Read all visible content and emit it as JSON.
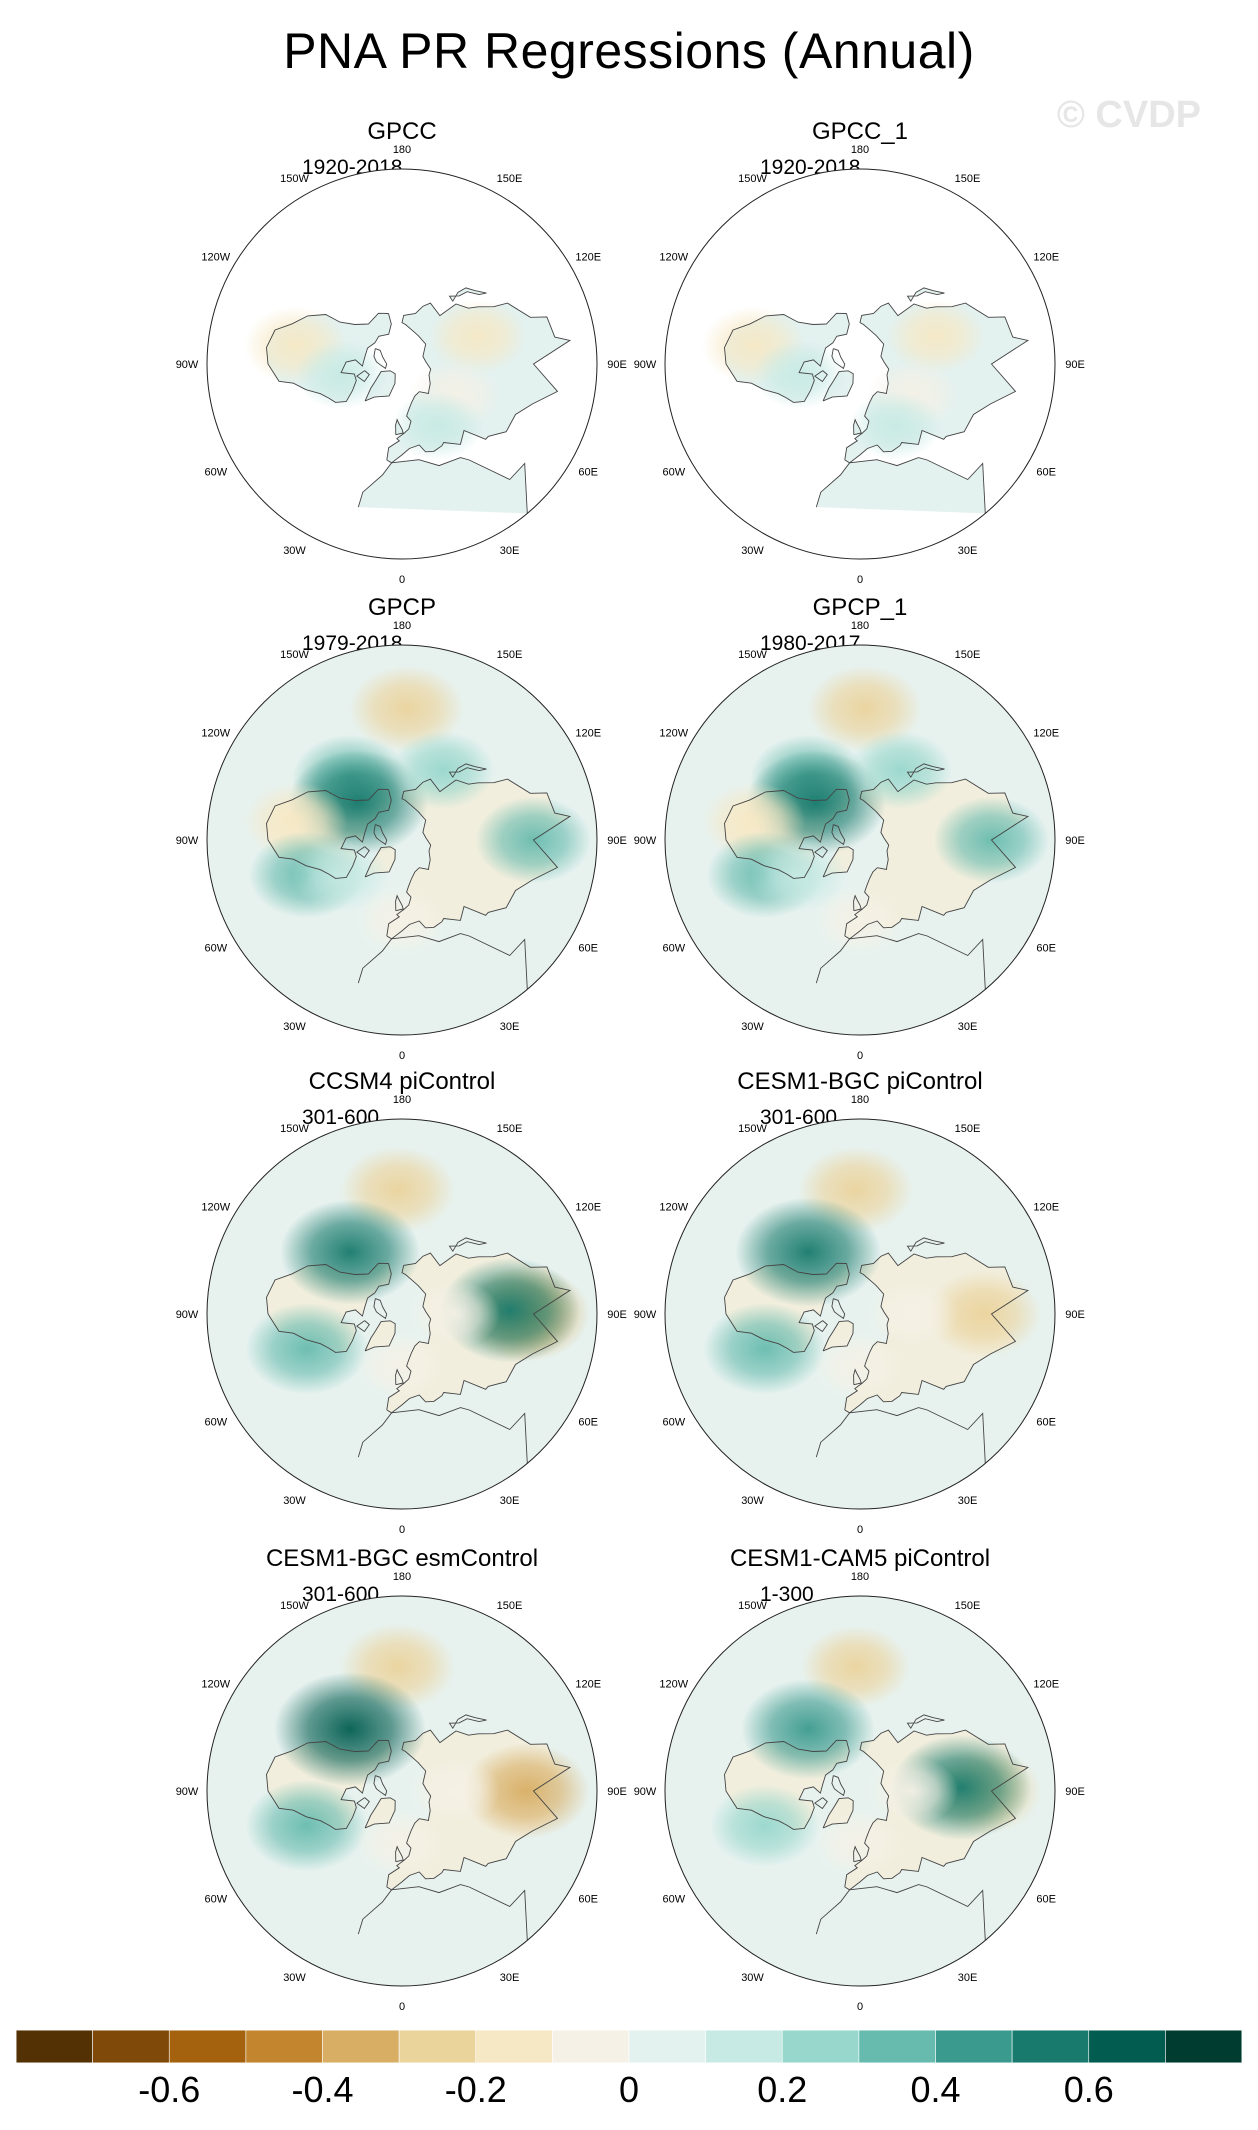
{
  "title": "PNA PR Regressions (Annual)",
  "watermark": "© CVDP",
  "chart_data": [
    {
      "type": "heatmap",
      "title": "GPCC",
      "subtitle": "1920-2018",
      "projection": "north-polar-stereographic",
      "lon_labels": [
        "180",
        "150E",
        "120E",
        "90E",
        "60E",
        "30E",
        "0",
        "30W",
        "60W",
        "90W",
        "120W",
        "150W"
      ],
      "ocean_missing": true,
      "anomalies": [
        {
          "lon": 110,
          "lat": 45,
          "value": -0.15
        },
        {
          "lon": -100,
          "lat": 32,
          "value": -0.2
        },
        {
          "lon": -80,
          "lat": 55,
          "value": 0.1
        },
        {
          "lon": 60,
          "lat": 55,
          "value": -0.1
        },
        {
          "lon": 30,
          "lat": 50,
          "value": 0.1
        }
      ]
    },
    {
      "type": "heatmap",
      "title": "GPCC_1",
      "subtitle": "1920-2018",
      "projection": "north-polar-stereographic",
      "lon_labels": [
        "180",
        "150E",
        "120E",
        "90E",
        "60E",
        "30E",
        "0",
        "30W",
        "60W",
        "90W",
        "120W",
        "150W"
      ],
      "ocean_missing": true,
      "anomalies": [
        {
          "lon": 110,
          "lat": 45,
          "value": -0.15
        },
        {
          "lon": -100,
          "lat": 32,
          "value": -0.2
        },
        {
          "lon": -80,
          "lat": 55,
          "value": 0.1
        },
        {
          "lon": 60,
          "lat": 55,
          "value": -0.1
        },
        {
          "lon": 30,
          "lat": 50,
          "value": 0.1
        }
      ]
    },
    {
      "type": "heatmap",
      "title": "GPCP",
      "subtitle": "1979-2018",
      "projection": "north-polar-stereographic",
      "lon_labels": [
        "180",
        "150E",
        "120E",
        "90E",
        "60E",
        "30E",
        "0",
        "30W",
        "60W",
        "90W",
        "120W",
        "150W"
      ],
      "ocean_missing": false,
      "anomalies": [
        {
          "lon": 178,
          "lat": 22,
          "value": -0.3
        },
        {
          "lon": -140,
          "lat": 45,
          "value": 0.3
        },
        {
          "lon": -130,
          "lat": 57,
          "value": 0.5
        },
        {
          "lon": 150,
          "lat": 45,
          "value": 0.2
        },
        {
          "lon": -100,
          "lat": 32,
          "value": -0.2
        },
        {
          "lon": -70,
          "lat": 35,
          "value": 0.3
        },
        {
          "lon": -60,
          "lat": 50,
          "value": 0.15
        },
        {
          "lon": 90,
          "lat": 22,
          "value": 0.3
        },
        {
          "lon": 0,
          "lat": 45,
          "value": -0.1
        }
      ]
    },
    {
      "type": "heatmap",
      "title": "GPCP_1",
      "subtitle": "1980-2017",
      "projection": "north-polar-stereographic",
      "lon_labels": [
        "180",
        "150E",
        "120E",
        "90E",
        "60E",
        "30E",
        "0",
        "30W",
        "60W",
        "90W",
        "120W",
        "150W"
      ],
      "ocean_missing": false,
      "anomalies": [
        {
          "lon": 178,
          "lat": 22,
          "value": -0.3
        },
        {
          "lon": -140,
          "lat": 45,
          "value": 0.3
        },
        {
          "lon": -130,
          "lat": 57,
          "value": 0.5
        },
        {
          "lon": 150,
          "lat": 45,
          "value": 0.2
        },
        {
          "lon": -100,
          "lat": 32,
          "value": -0.2
        },
        {
          "lon": -70,
          "lat": 35,
          "value": 0.3
        },
        {
          "lon": -60,
          "lat": 50,
          "value": 0.15
        },
        {
          "lon": 90,
          "lat": 22,
          "value": 0.3
        },
        {
          "lon": 0,
          "lat": 45,
          "value": -0.1
        }
      ]
    },
    {
      "type": "heatmap",
      "title": "CCSM4 piControl",
      "subtitle": "301-600",
      "projection": "north-polar-stereographic",
      "lon_labels": [
        "180",
        "150E",
        "120E",
        "90E",
        "60E",
        "30E",
        "0",
        "30W",
        "60W",
        "90W",
        "120W",
        "150W"
      ],
      "ocean_missing": false,
      "anomalies": [
        {
          "lon": -178,
          "lat": 25,
          "value": -0.3
        },
        {
          "lon": -140,
          "lat": 45,
          "value": 0.5
        },
        {
          "lon": -70,
          "lat": 35,
          "value": 0.35
        },
        {
          "lon": 90,
          "lat": 25,
          "value": -0.4
        },
        {
          "lon": 92,
          "lat": 32,
          "value": 0.5
        },
        {
          "lon": 0,
          "lat": 60,
          "value": -0.1
        },
        {
          "lon": 90,
          "lat": 60,
          "value": -0.1
        }
      ]
    },
    {
      "type": "heatmap",
      "title": "CESM1-BGC piControl",
      "subtitle": "301-600",
      "projection": "north-polar-stereographic",
      "lon_labels": [
        "180",
        "150E",
        "120E",
        "90E",
        "60E",
        "30E",
        "0",
        "30W",
        "60W",
        "90W",
        "120W",
        "150W"
      ],
      "ocean_missing": false,
      "anomalies": [
        {
          "lon": -178,
          "lat": 25,
          "value": -0.3
        },
        {
          "lon": -140,
          "lat": 45,
          "value": 0.55
        },
        {
          "lon": -70,
          "lat": 35,
          "value": 0.35
        },
        {
          "lon": 90,
          "lat": 25,
          "value": -0.3
        },
        {
          "lon": 0,
          "lat": 60,
          "value": -0.1
        },
        {
          "lon": 90,
          "lat": 60,
          "value": -0.1
        }
      ]
    },
    {
      "type": "heatmap",
      "title": "CESM1-BGC esmControl",
      "subtitle": "301-600",
      "projection": "north-polar-stereographic",
      "lon_labels": [
        "180",
        "150E",
        "120E",
        "90E",
        "60E",
        "30E",
        "0",
        "30W",
        "60W",
        "90W",
        "120W",
        "150W"
      ],
      "ocean_missing": false,
      "anomalies": [
        {
          "lon": -178,
          "lat": 25,
          "value": -0.3
        },
        {
          "lon": -140,
          "lat": 45,
          "value": 0.6
        },
        {
          "lon": -70,
          "lat": 35,
          "value": 0.35
        },
        {
          "lon": 90,
          "lat": 25,
          "value": -0.4
        },
        {
          "lon": 0,
          "lat": 60,
          "value": -0.1
        },
        {
          "lon": 90,
          "lat": 60,
          "value": -0.1
        }
      ]
    },
    {
      "type": "heatmap",
      "title": "CESM1-CAM5 piControl",
      "subtitle": "1-300",
      "projection": "north-polar-stereographic",
      "lon_labels": [
        "180",
        "150E",
        "120E",
        "90E",
        "60E",
        "30E",
        "0",
        "30W",
        "60W",
        "90W",
        "120W",
        "150W"
      ],
      "ocean_missing": false,
      "anomalies": [
        {
          "lon": -178,
          "lat": 25,
          "value": -0.25
        },
        {
          "lon": -140,
          "lat": 45,
          "value": 0.45
        },
        {
          "lon": -70,
          "lat": 35,
          "value": 0.25
        },
        {
          "lon": 90,
          "lat": 25,
          "value": -0.3
        },
        {
          "lon": 92,
          "lat": 35,
          "value": 0.5
        },
        {
          "lon": 0,
          "lat": 60,
          "value": -0.1
        },
        {
          "lon": 90,
          "lat": 60,
          "value": -0.1
        }
      ]
    }
  ],
  "colorbar": {
    "levels": [
      -0.7,
      -0.6,
      -0.5,
      -0.4,
      -0.3,
      -0.2,
      -0.1,
      0,
      0.1,
      0.2,
      0.3,
      0.4,
      0.5,
      0.6,
      0.7
    ],
    "colors": [
      "#543005",
      "#7f4909",
      "#a4620e",
      "#c3852d",
      "#d8ae64",
      "#ebd39c",
      "#f6e8c4",
      "#f5f1e6",
      "#e3f1ef",
      "#c7eae4",
      "#98d7cc",
      "#67bbae",
      "#3b9a8e",
      "#177a6c",
      "#025d50",
      "#003c30"
    ],
    "tick_labels": [
      "-0.6",
      "-0.4",
      "-0.2",
      "0",
      "0.2",
      "0.4",
      "0.6"
    ],
    "tick_values": [
      -0.6,
      -0.4,
      -0.2,
      0,
      0.2,
      0.4,
      0.6
    ]
  }
}
